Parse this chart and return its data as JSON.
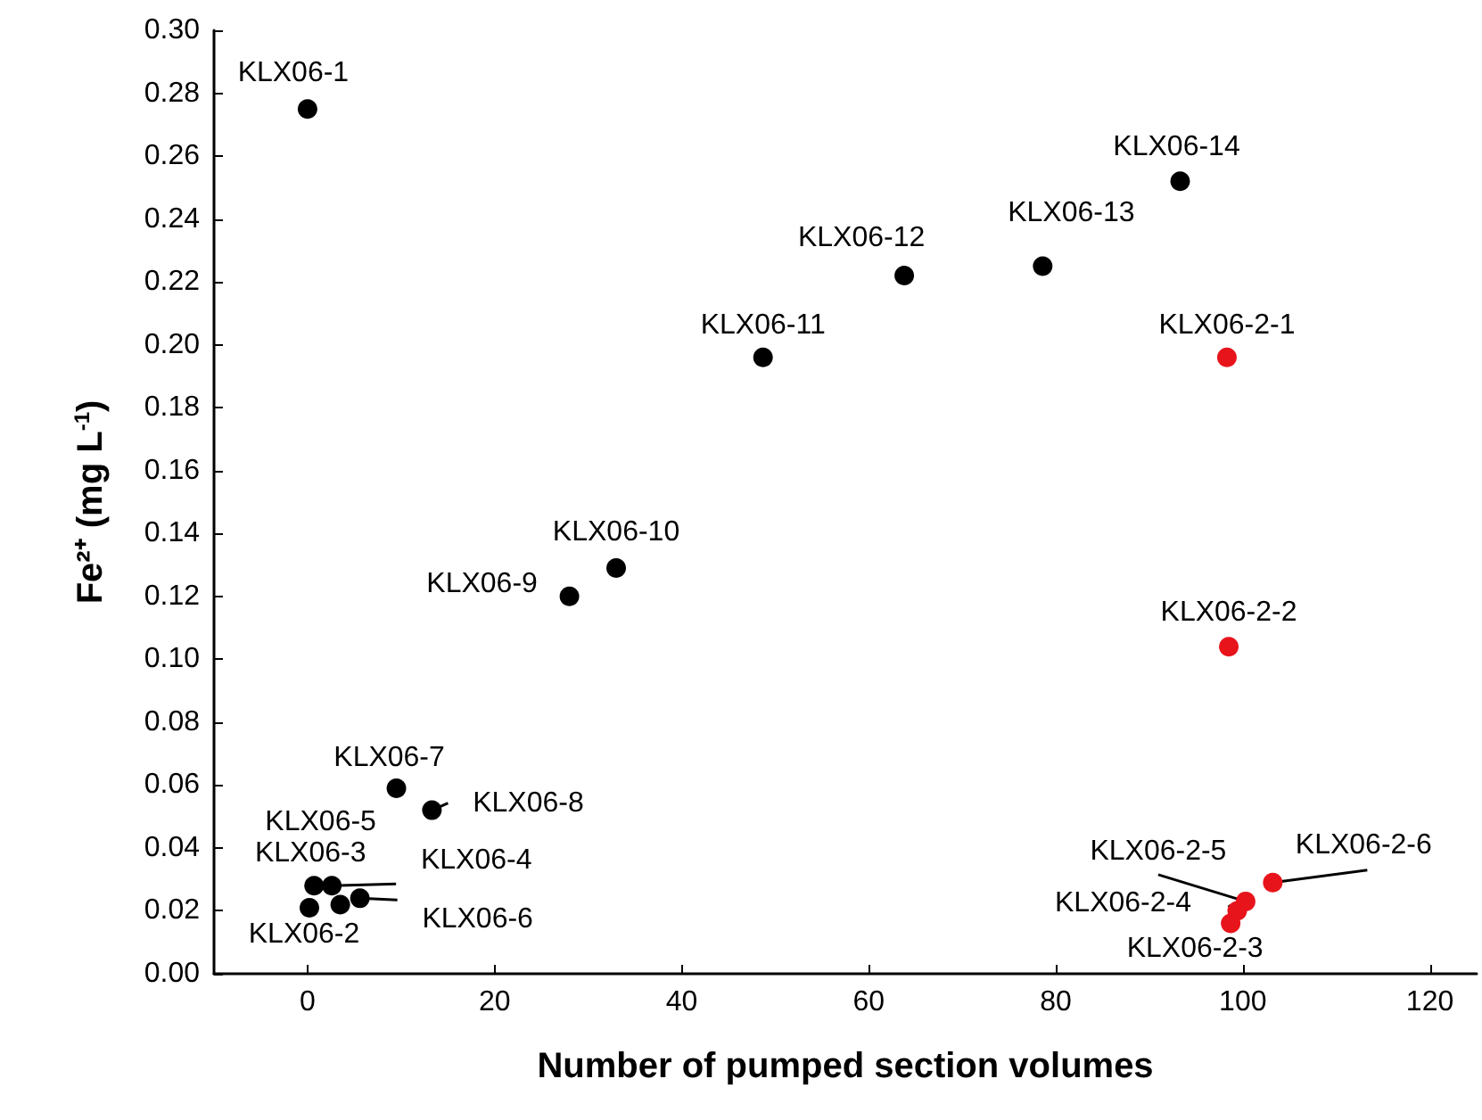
{
  "chart_data": {
    "type": "scatter",
    "xlabel": "Number of pumped section volumes",
    "ylabel": "Fe²⁺ (mg L$^{-1}$)",
    "series": [
      {
        "color": "#000000",
        "x": [
          0,
          0.2,
          0.7,
          2.6,
          3.5,
          5.6,
          9.5,
          13.3,
          28,
          33,
          48.7,
          63.8,
          78.6,
          93.3
        ],
        "values": [
          0.275,
          0.021,
          0.028,
          0.028,
          0.022,
          0.024,
          0.059,
          0.052,
          0.12,
          0.129,
          0.196,
          0.222,
          0.225,
          0.252
        ]
      },
      {
        "color": "#e8141c",
        "x": [
          98.3,
          98.5,
          98.7,
          99.4,
          100.3,
          103.2
        ],
        "values": [
          0.196,
          0.104,
          0.016,
          0.02,
          0.023,
          0.029
        ]
      }
    ],
    "annotations": [
      {
        "text": "KLX06-1",
        "x": 0,
        "y": 0.275
      },
      {
        "text": "KLX06-2",
        "x": 0.2,
        "y": 0.021
      },
      {
        "text": "KLX06-3",
        "x": 0.7,
        "y": 0.028
      },
      {
        "text": "KLX06-4",
        "x": 2.6,
        "y": 0.028
      },
      {
        "text": "KLX06-5",
        "x": 3.5,
        "y": 0.022
      },
      {
        "text": "KLX06-6",
        "x": 5.6,
        "y": 0.024
      },
      {
        "text": "KLX06-7",
        "x": 9.5,
        "y": 0.059
      },
      {
        "text": "KLX06-8",
        "x": 13.3,
        "y": 0.052
      },
      {
        "text": "KLX06-9",
        "x": 28,
        "y": 0.12
      },
      {
        "text": "KLX06-10",
        "x": 33,
        "y": 0.129
      },
      {
        "text": "KLX06-11",
        "x": 48.7,
        "y": 0.196
      },
      {
        "text": "KLX06-12",
        "x": 63.8,
        "y": 0.222
      },
      {
        "text": "KLX06-13",
        "x": 78.6,
        "y": 0.225
      },
      {
        "text": "KLX06-14",
        "x": 93.3,
        "y": 0.252
      },
      {
        "text": "KLX06-2-1",
        "x": 98.3,
        "y": 0.196
      },
      {
        "text": "KLX06-2-2",
        "x": 98.5,
        "y": 0.104
      },
      {
        "text": "KLX06-2-3",
        "x": 98.7,
        "y": 0.016
      },
      {
        "text": "KLX06-2-4",
        "x": 99.4,
        "y": 0.02
      },
      {
        "text": "KLX06-2-5",
        "x": 100.3,
        "y": 0.023
      },
      {
        "text": "KLX06-2-6",
        "x": 103.2,
        "y": 0.029
      }
    ],
    "xlim": [
      -10,
      125
    ],
    "xticks": [
      0,
      20,
      40,
      60,
      80,
      100,
      120
    ],
    "ylim": [
      0,
      0.3
    ],
    "yticks": [
      {
        "value": 0,
        "label": "0.00"
      },
      {
        "value": 0.02,
        "label": "0.02"
      },
      {
        "value": 0.04,
        "label": "0.04"
      },
      {
        "value": 0.06,
        "label": "0.06"
      },
      {
        "value": 0.08,
        "label": "0.08"
      },
      {
        "value": 0.1,
        "label": "0.10"
      },
      {
        "value": 0.12,
        "label": "0.12"
      },
      {
        "value": 0.14,
        "label": "0.14"
      },
      {
        "value": 0.16,
        "label": "0.16"
      },
      {
        "value": 0.18,
        "label": "0.18"
      },
      {
        "value": 0.2,
        "label": "0.20"
      },
      {
        "value": 0.22,
        "label": "0.22"
      },
      {
        "value": 0.24,
        "label": "0.24"
      },
      {
        "value": 0.26,
        "label": "0.26"
      },
      {
        "value": 0.28,
        "label": "0.28"
      },
      {
        "value": 0.3,
        "label": "0.30"
      }
    ],
    "grid": false,
    "marker": "circle"
  }
}
